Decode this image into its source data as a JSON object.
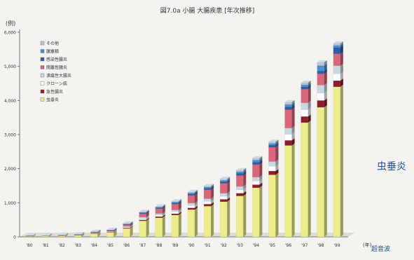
{
  "chart_data": {
    "type": "bar",
    "stacked": true,
    "title": "図7.0a 小腸 大腸疾患 [年次推移]",
    "xlabel": "",
    "ylabel": "(例)",
    "x_unit": "(年)",
    "categories": [
      "'80",
      "'81",
      "'82",
      "'83",
      "'84",
      "'85",
      "'86",
      "'87",
      "'88",
      "'89",
      "'90",
      "'91",
      "'92",
      "'93",
      "'94",
      "'95",
      "'96",
      "'97",
      "'98",
      "'99"
    ],
    "y_ticks": [
      "0",
      "1,000",
      "2,000",
      "3,000",
      "4,000",
      "5,000",
      "6,000"
    ],
    "ylim": [
      0,
      6000
    ],
    "grid": false,
    "legend_position": "top-left",
    "series": [
      {
        "name": "虫垂炎",
        "color": "#ecec8a",
        "values": [
          20,
          25,
          30,
          45,
          90,
          130,
          250,
          470,
          560,
          640,
          800,
          900,
          1030,
          1200,
          1440,
          1820,
          2680,
          3350,
          3800,
          4400
        ]
      },
      {
        "name": "急性腸炎",
        "color": "#8c1e2e",
        "values": [
          3,
          3,
          4,
          5,
          8,
          10,
          18,
          30,
          35,
          40,
          50,
          60,
          70,
          80,
          90,
          110,
          150,
          180,
          200,
          180
        ]
      },
      {
        "name": "クローン病",
        "color": "#ffffff",
        "values": [
          2,
          2,
          3,
          4,
          8,
          10,
          20,
          40,
          45,
          55,
          70,
          80,
          90,
          100,
          110,
          140,
          180,
          200,
          220,
          200
        ]
      },
      {
        "name": "潰瘍性大腸炎",
        "color": "#c8d8e0",
        "values": [
          2,
          2,
          3,
          4,
          8,
          10,
          20,
          40,
          45,
          55,
          70,
          80,
          90,
          100,
          110,
          140,
          180,
          200,
          230,
          240
        ]
      },
      {
        "name": "閉塞性腸炎",
        "color": "#d9667a",
        "values": [
          5,
          6,
          7,
          10,
          20,
          25,
          50,
          100,
          140,
          170,
          230,
          260,
          290,
          320,
          370,
          420,
          540,
          400,
          330,
          350
        ]
      },
      {
        "name": "感染性腸炎",
        "color": "#2b5fa5",
        "values": [
          2,
          2,
          3,
          4,
          8,
          10,
          15,
          25,
          30,
          35,
          40,
          45,
          50,
          60,
          70,
          60,
          80,
          70,
          80,
          180
        ]
      },
      {
        "name": "腸重積",
        "color": "#4a8fd0",
        "values": [
          1,
          1,
          2,
          2,
          5,
          6,
          10,
          15,
          20,
          25,
          30,
          35,
          40,
          50,
          60,
          50,
          70,
          60,
          160,
          60
        ]
      },
      {
        "name": "その他",
        "color": "#b9c6d2",
        "values": [
          1,
          1,
          2,
          2,
          5,
          6,
          10,
          15,
          20,
          25,
          30,
          35,
          40,
          50,
          60,
          50,
          70,
          60,
          100,
          60
        ]
      }
    ],
    "annotations": [
      "虫垂炎",
      "超音波"
    ]
  }
}
